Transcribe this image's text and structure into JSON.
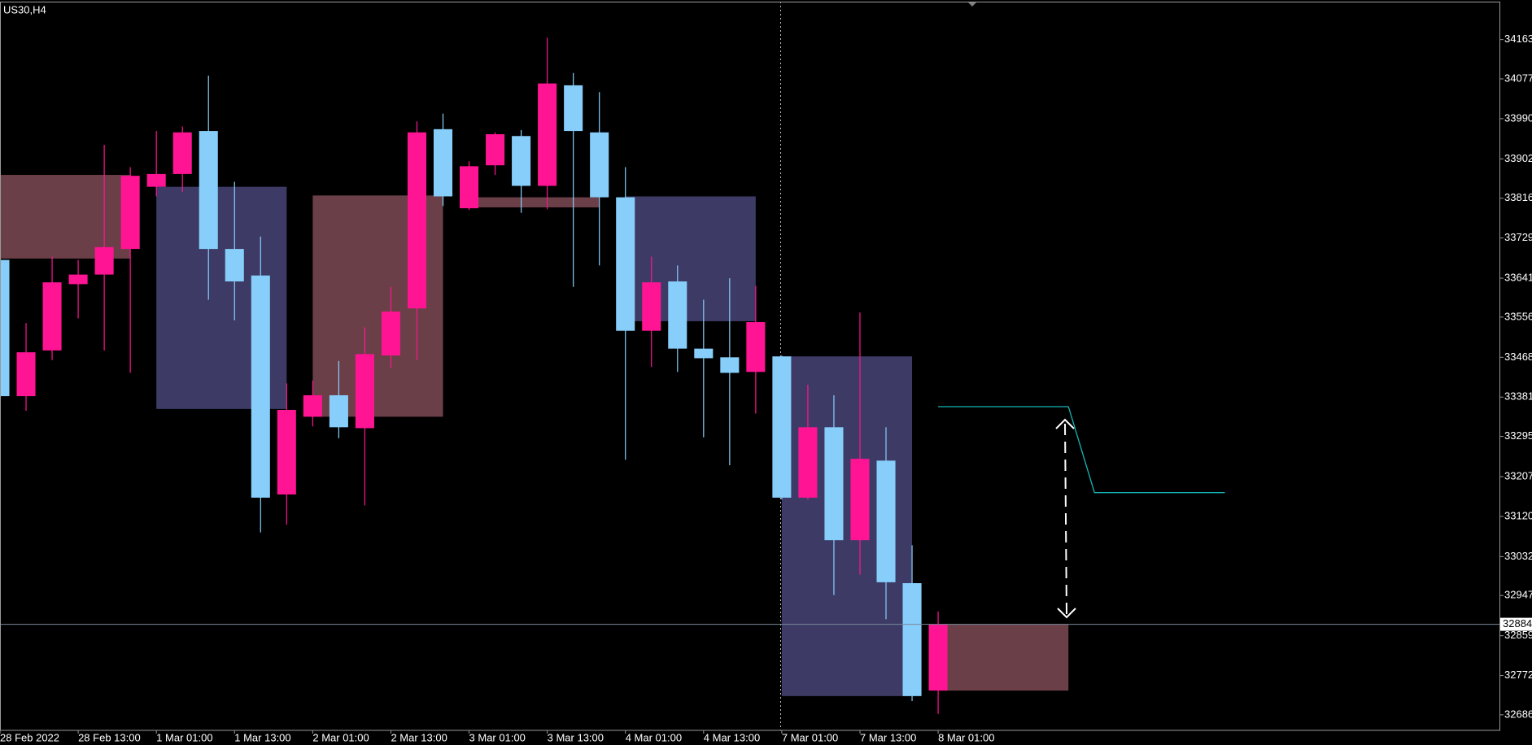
{
  "chart_data": {
    "type": "candlestick",
    "title": "US30,H4",
    "up_color": "#ff1493",
    "down_color": "#87cefa",
    "categories": [
      "28 Feb 2022",
      null,
      null,
      "28 Feb 13:00",
      null,
      null,
      "1 Mar 01:00",
      null,
      null,
      "1 Mar 13:00",
      null,
      null,
      "2 Mar 01:00",
      null,
      null,
      "2 Mar 13:00",
      null,
      null,
      "3 Mar 01:00",
      null,
      null,
      "3 Mar 13:00",
      null,
      null,
      "4 Mar 01:00",
      null,
      null,
      "4 Mar 13:00",
      null,
      null,
      "7 Mar 01:00",
      null,
      null,
      "7 Mar 13:00",
      null,
      null,
      "8 Mar 01:00"
    ],
    "open": [
      33681,
      33383,
      33483,
      33628,
      33649,
      33705,
      33841,
      33869,
      33963,
      33705,
      33647,
      33168,
      33338,
      33385,
      33313,
      33472,
      33575,
      33967,
      33794,
      33888,
      33952,
      33843,
      34063,
      33960,
      33818,
      33526,
      33634,
      33487,
      33468,
      33436,
      33470,
      33161,
      33315,
      33068,
      33242,
      32974,
      32739
    ],
    "high": [
      33703,
      33543,
      33688,
      33681,
      33933,
      33884,
      33963,
      33973,
      34084,
      33852,
      33732,
      33411,
      33417,
      33460,
      33534,
      33622,
      33984,
      34001,
      33897,
      33960,
      33965,
      34167,
      34090,
      34048,
      33884,
      33688,
      33669,
      33594,
      33641,
      33624,
      33472,
      33408,
      33385,
      33566,
      33315,
      33057,
      32912
    ],
    "low": [
      33340,
      33351,
      33462,
      33553,
      33483,
      33434,
      33820,
      33830,
      33594,
      33549,
      33085,
      33102,
      33317,
      33291,
      33144,
      33445,
      33462,
      33799,
      33790,
      33867,
      33784,
      33792,
      33622,
      33669,
      33244,
      33447,
      33436,
      33293,
      33232,
      33345,
      33157,
      33157,
      32948,
      32993,
      32895,
      32716,
      32688
    ],
    "close": [
      33383,
      33479,
      33632,
      33649,
      33709,
      33865,
      33869,
      33960,
      33705,
      33634,
      33161,
      33353,
      33385,
      33315,
      33475,
      33568,
      33960,
      33820,
      33886,
      33956,
      33843,
      34067,
      33963,
      33818,
      33526,
      33632,
      33487,
      33466,
      33434,
      33545,
      33161,
      33315,
      33068,
      33246,
      32976,
      32727,
      32884
    ],
    "zones": [
      {
        "color": "#6b3f47",
        "x": [
          0,
          5
        ],
        "y": [
          33684,
          33867
        ]
      },
      {
        "color": "#3d3b66",
        "x": [
          6,
          11
        ],
        "y": [
          33355,
          33841
        ]
      },
      {
        "color": "#6b3f47",
        "x": [
          12,
          17
        ],
        "y": [
          33338,
          33822
        ]
      },
      {
        "color": "#6b3f47",
        "x": [
          18,
          23
        ],
        "y": [
          33796,
          33818
        ]
      },
      {
        "color": "#3d3b66",
        "x": [
          24,
          29
        ],
        "y": [
          33547,
          33820
        ]
      },
      {
        "color": "#3d3b66",
        "x": [
          30,
          35
        ],
        "y": [
          32727,
          33470
        ]
      },
      {
        "color": "#6b3f47",
        "x": [
          36,
          41
        ],
        "y": [
          32739,
          32884
        ]
      }
    ],
    "projection": {
      "color": "#17b5b5",
      "x": [
        36,
        41,
        42,
        47
      ],
      "values": [
        33360,
        33360,
        33172,
        33172
      ]
    },
    "bid": 32884,
    "ylim": [
      32652,
      34246
    ],
    "yticks": [
      34163,
      34077,
      33990,
      33902,
      33816,
      33729,
      33641,
      33556,
      33468,
      33381,
      33295,
      33207,
      33120,
      33032,
      32947,
      32859,
      32772,
      32686
    ]
  }
}
